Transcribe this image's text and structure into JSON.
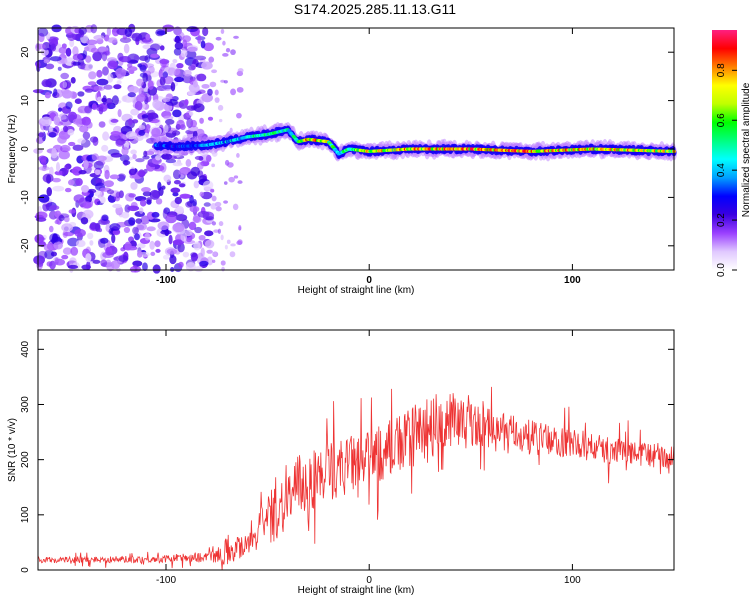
{
  "title": "S174.2025.285.11.13.G11",
  "chart_data": [
    {
      "type": "heatmap",
      "name": "spectrogram",
      "xlabel": "Height of straight line (km)",
      "ylabel": "Frequency (Hz)",
      "xlim": [
        -163,
        150
      ],
      "ylim": [
        -25,
        25
      ],
      "xticks": [
        -100,
        0,
        100
      ],
      "yticks": [
        -20,
        -10,
        0,
        10,
        20
      ],
      "colorbar": {
        "label": "Normalized spectral amplitude",
        "range": [
          0,
          1
        ],
        "ticks": [
          0.0,
          0.2,
          0.4,
          0.6,
          0.8
        ],
        "colors": [
          "#ffffff",
          "#e0c8ff",
          "#9a40ff",
          "#3a00e0",
          "#0000ff",
          "#00a0ff",
          "#00ffff",
          "#00ff80",
          "#00ff00",
          "#c0ff00",
          "#ffff00",
          "#ff8000",
          "#ff0000",
          "#ff1f80"
        ]
      },
      "signal_trace": {
        "description_points_x": [
          -105,
          -95,
          -80,
          -70,
          -60,
          -50,
          -40,
          -35,
          -30,
          -20,
          -15,
          -10,
          0,
          20,
          50,
          80,
          110,
          150
        ],
        "frequency_hz": [
          0.8,
          0.5,
          0.8,
          1.5,
          2.5,
          3.0,
          4.0,
          1.5,
          2.0,
          1.5,
          -1.0,
          0.0,
          -0.5,
          0.0,
          0.0,
          -0.5,
          0.0,
          -0.5
        ],
        "amplitude": [
          0.35,
          0.3,
          0.4,
          0.45,
          0.5,
          0.55,
          0.5,
          0.6,
          0.85,
          0.75,
          0.45,
          0.6,
          0.75,
          0.8,
          0.85,
          0.85,
          0.8,
          0.75
        ]
      },
      "noise_region_x": [
        -163,
        -78
      ]
    },
    {
      "type": "line",
      "name": "snr",
      "xlabel": "Height of straight line (km)",
      "ylabel": "SNR (10 * v/v)",
      "xlim": [
        -163,
        150
      ],
      "ylim": [
        0,
        435
      ],
      "xticks": [
        -100,
        0,
        100
      ],
      "yticks": [
        0,
        100,
        200,
        300,
        400
      ],
      "color": "#ee3333",
      "envelope": {
        "x": [
          -163,
          -100,
          -75,
          -70,
          -65,
          -55,
          -45,
          -35,
          -20,
          -10,
          0,
          10,
          20,
          30,
          40,
          50,
          60,
          80,
          100,
          120,
          150
        ],
        "baseline": [
          18,
          20,
          25,
          35,
          40,
          70,
          110,
          150,
          180,
          190,
          200,
          220,
          235,
          260,
          270,
          265,
          255,
          240,
          230,
          215,
          205
        ],
        "spread": [
          12,
          15,
          25,
          60,
          50,
          80,
          120,
          130,
          120,
          120,
          110,
          120,
          130,
          140,
          110,
          90,
          80,
          70,
          60,
          55,
          50
        ]
      }
    }
  ]
}
